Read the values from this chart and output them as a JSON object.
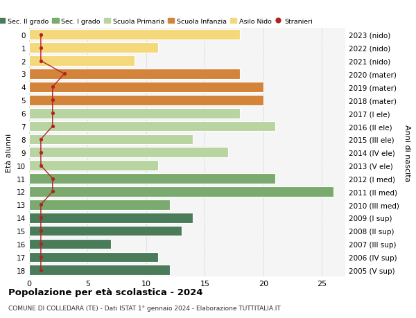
{
  "ages": [
    18,
    17,
    16,
    15,
    14,
    13,
    12,
    11,
    10,
    9,
    8,
    7,
    6,
    5,
    4,
    3,
    2,
    1,
    0
  ],
  "right_labels": [
    "2005 (V sup)",
    "2006 (IV sup)",
    "2007 (III sup)",
    "2008 (II sup)",
    "2009 (I sup)",
    "2010 (III med)",
    "2011 (II med)",
    "2012 (I med)",
    "2013 (V ele)",
    "2014 (IV ele)",
    "2015 (III ele)",
    "2016 (II ele)",
    "2017 (I ele)",
    "2018 (mater)",
    "2019 (mater)",
    "2020 (mater)",
    "2021 (nido)",
    "2022 (nido)",
    "2023 (nido)"
  ],
  "values": [
    12,
    11,
    7,
    13,
    14,
    12,
    26,
    21,
    11,
    17,
    14,
    21,
    18,
    20,
    20,
    18,
    9,
    11,
    18
  ],
  "stranieri": [
    1,
    1,
    1,
    1,
    1,
    1,
    2,
    2,
    1,
    1,
    1,
    2,
    2,
    2,
    2,
    3,
    1,
    1,
    1
  ],
  "colors": [
    "#4a7c59",
    "#4a7c59",
    "#4a7c59",
    "#4a7c59",
    "#4a7c59",
    "#7aaa6e",
    "#7aaa6e",
    "#7aaa6e",
    "#b8d4a0",
    "#b8d4a0",
    "#b8d4a0",
    "#b8d4a0",
    "#b8d4a0",
    "#d4843a",
    "#d4843a",
    "#d4843a",
    "#f5d87a",
    "#f5d87a",
    "#f5d87a"
  ],
  "legend_labels": [
    "Sec. II grado",
    "Sec. I grado",
    "Scuola Primaria",
    "Scuola Infanzia",
    "Asilo Nido",
    "Stranieri"
  ],
  "legend_colors": [
    "#4a7c59",
    "#7aaa6e",
    "#b8d4a0",
    "#d4843a",
    "#f5d87a",
    "#b22222"
  ],
  "title": "Popolazione per età scolastica - 2024",
  "subtitle": "COMUNE DI COLLEDARA (TE) - Dati ISTAT 1° gennaio 2024 - Elaborazione TUTTITALIA.IT",
  "ylabel_left": "Età alunni",
  "ylabel_right": "Anni di nascita",
  "xlim": [
    0,
    27
  ],
  "xticks": [
    0,
    5,
    10,
    15,
    20,
    25
  ],
  "background_color": "#f5f5f5",
  "grid_color": "#cccccc",
  "stranieri_color": "#b22222",
  "bar_height": 0.78
}
